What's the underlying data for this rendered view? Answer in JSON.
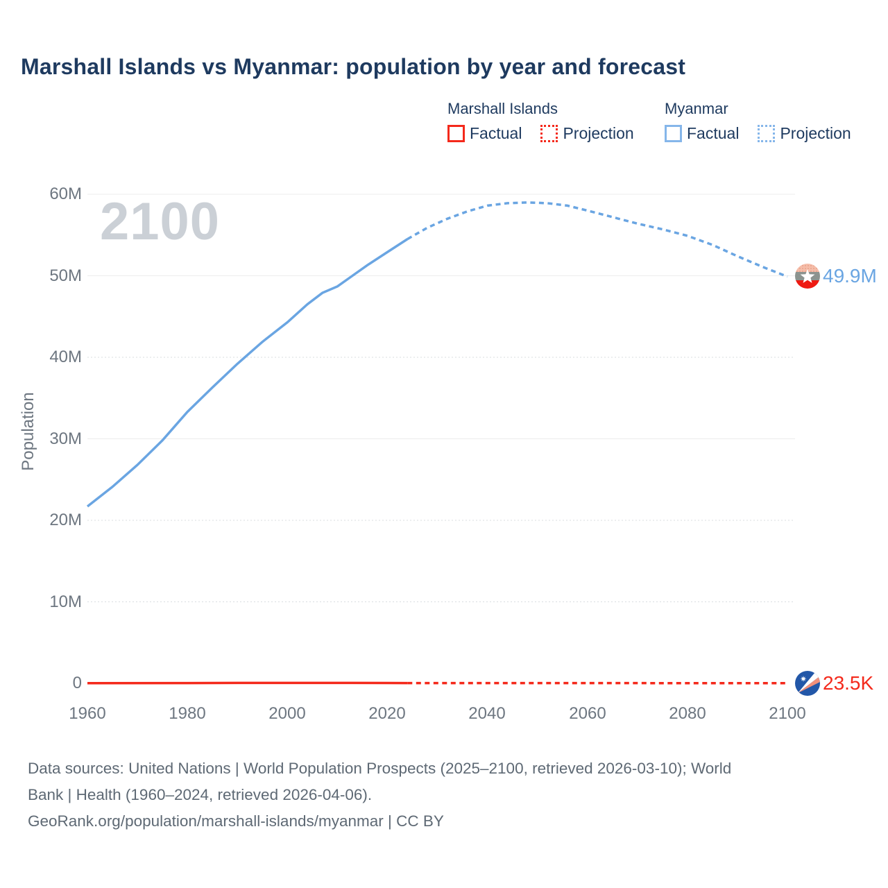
{
  "title": "Marshall Islands vs Myanmar: population by year and forecast",
  "watermark": "2100",
  "legend": {
    "groups": [
      {
        "name": "Marshall Islands",
        "color": "#f4291b",
        "items": [
          {
            "label": "Factual",
            "style": "solid"
          },
          {
            "label": "Projection",
            "style": "dotted"
          }
        ]
      },
      {
        "name": "Myanmar",
        "color": "#85b6ea",
        "items": [
          {
            "label": "Factual",
            "style": "solid"
          },
          {
            "label": "Projection",
            "style": "dotted"
          }
        ]
      }
    ]
  },
  "y_axis": {
    "label": "Population",
    "ticks": [
      "60M",
      "50M",
      "40M",
      "30M",
      "20M",
      "10M",
      "0"
    ]
  },
  "x_axis": {
    "ticks": [
      "1960",
      "1980",
      "2000",
      "2020",
      "2040",
      "2060",
      "2080",
      "2100"
    ]
  },
  "end_labels": {
    "myanmar": "49.9M",
    "marshall_islands": "23.5K"
  },
  "footer": {
    "lines": [
      "Data sources: United Nations | World Population Prospects (2025–2100, retrieved 2026-03-10); World",
      "Bank | Health (1960–2024, retrieved 2026-04-06).",
      "GeoRank.org/population/marshall-islands/myanmar | CC BY"
    ]
  },
  "chart_data": {
    "type": "line",
    "title": "Marshall Islands vs Myanmar: population by year and forecast",
    "xlabel": "",
    "ylabel": "Population",
    "unit": "millions of people",
    "xlim": [
      1960,
      2100
    ],
    "ylim": [
      0,
      60
    ],
    "grid": "horizontal-only",
    "legend_position": "top-right",
    "x_ticks": [
      1960,
      1980,
      2000,
      2020,
      2040,
      2060,
      2080,
      2100
    ],
    "y_ticks": [
      {
        "label": "0",
        "value": 0,
        "grid": "none"
      },
      {
        "label": "10M",
        "value": 10,
        "grid": "dotted"
      },
      {
        "label": "20M",
        "value": 20,
        "grid": "dotted"
      },
      {
        "label": "30M",
        "value": 30,
        "grid": "solid"
      },
      {
        "label": "40M",
        "value": 40,
        "grid": "dotted"
      },
      {
        "label": "50M",
        "value": 50,
        "grid": "solid"
      },
      {
        "label": "60M",
        "value": 60,
        "grid": "solid"
      }
    ],
    "series": [
      {
        "name": "Myanmar — Factual (1960–2024)",
        "style": "solid",
        "color": "#6aa5e2",
        "points": [
          [
            1960,
            21.7
          ],
          [
            1965,
            24.1
          ],
          [
            1970,
            26.8
          ],
          [
            1975,
            29.8
          ],
          [
            1980,
            33.3
          ],
          [
            1985,
            36.3
          ],
          [
            1990,
            39.2
          ],
          [
            1995,
            41.9
          ],
          [
            2000,
            44.3
          ],
          [
            2004,
            46.5
          ],
          [
            2007,
            47.9
          ],
          [
            2010,
            48.7
          ],
          [
            2013,
            50.0
          ],
          [
            2016,
            51.3
          ],
          [
            2020,
            52.9
          ],
          [
            2024,
            54.5
          ]
        ]
      },
      {
        "name": "Myanmar — Projection (2024–2100)",
        "style": "dashed",
        "color": "#6aa5e2",
        "points": [
          [
            2024,
            54.5
          ],
          [
            2028,
            55.9
          ],
          [
            2032,
            57.0
          ],
          [
            2036,
            57.9
          ],
          [
            2040,
            58.6
          ],
          [
            2044,
            58.9
          ],
          [
            2048,
            59.0
          ],
          [
            2052,
            58.9
          ],
          [
            2056,
            58.6
          ],
          [
            2060,
            58.0
          ],
          [
            2065,
            57.2
          ],
          [
            2070,
            56.4
          ],
          [
            2075,
            55.7
          ],
          [
            2080,
            54.9
          ],
          [
            2085,
            53.8
          ],
          [
            2090,
            52.4
          ],
          [
            2095,
            51.1
          ],
          [
            2100,
            49.9
          ]
        ]
      },
      {
        "name": "Marshall Islands — Factual (1960–2024)",
        "style": "solid",
        "color": "#f4291b",
        "points": [
          [
            1960,
            0.015
          ],
          [
            1980,
            0.031
          ],
          [
            1990,
            0.047
          ],
          [
            2000,
            0.054
          ],
          [
            2010,
            0.053
          ],
          [
            2020,
            0.043
          ],
          [
            2024,
            0.038
          ]
        ]
      },
      {
        "name": "Marshall Islands — Projection (2024–2100)",
        "style": "dashed",
        "color": "#f4291b",
        "points": [
          [
            2024,
            0.038
          ],
          [
            2050,
            0.032
          ],
          [
            2075,
            0.027
          ],
          [
            2100,
            0.0235
          ]
        ]
      }
    ],
    "end_labels": [
      {
        "series": "Myanmar",
        "year": 2100,
        "text": "49.9M"
      },
      {
        "series": "Marshall Islands",
        "year": 2100,
        "text": "23.5K"
      }
    ]
  }
}
